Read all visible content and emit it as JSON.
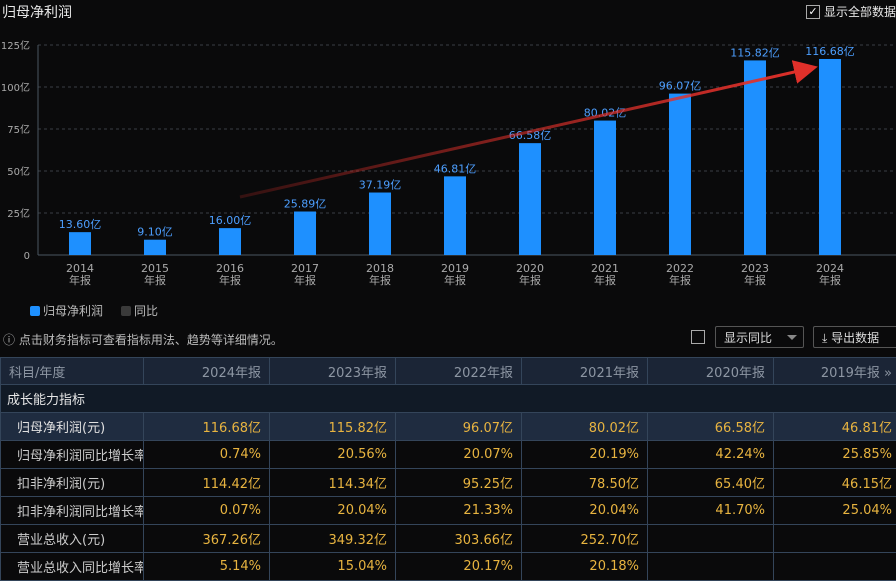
{
  "header": {
    "title": "归母净利润",
    "show_all_label": "显示全部数据",
    "show_all_checked": true
  },
  "chart_data": {
    "type": "bar",
    "categories": [
      "2014\n年报",
      "2015\n年报",
      "2016\n年报",
      "2017\n年报",
      "2018\n年报",
      "2019\n年报",
      "2020\n年报",
      "2021\n年报",
      "2022\n年报",
      "2023\n年报",
      "2024\n年报"
    ],
    "years": [
      "2014",
      "2015",
      "2016",
      "2017",
      "2018",
      "2019",
      "2020",
      "2021",
      "2022",
      "2023",
      "2024"
    ],
    "period_label": "年报",
    "series": [
      {
        "name": "归母净利润",
        "values": [
          13.6,
          9.1,
          16.0,
          25.89,
          37.19,
          46.81,
          66.58,
          80.02,
          96.07,
          115.82,
          116.68
        ],
        "color": "#1e90ff"
      }
    ],
    "data_labels": [
      "13.60亿",
      "9.10亿",
      "16.00亿",
      "25.89亿",
      "37.19亿",
      "46.81亿",
      "66.58亿",
      "80.02亿",
      "96.07亿",
      "115.82亿",
      "116.68亿"
    ],
    "y_ticks": [
      "0",
      "25亿",
      "50亿",
      "75亿",
      "100亿",
      "125亿"
    ],
    "ylim": [
      0,
      125
    ],
    "grid": true,
    "annotation": {
      "type": "trend-arrow",
      "color": "#e0302a",
      "from_year": "2016",
      "to_year": "2024"
    },
    "legend": [
      {
        "label": "归母净利润",
        "color": "#1e90ff"
      },
      {
        "label": "同比",
        "color": "#3a3a3a"
      }
    ],
    "legend_position": "bottom-left"
  },
  "toolbar": {
    "tip": "点击财务指标可查看指标用法、趋势等详细情况。",
    "yoy_select": "显示同比",
    "export": "导出数据"
  },
  "table": {
    "headers": [
      "科目/年度",
      "2024年报",
      "2023年报",
      "2022年报",
      "2021年报",
      "2020年报",
      "2019年报 »"
    ],
    "section": "成长能力指标",
    "rows": [
      [
        "归母净利润(元)",
        "116.68亿",
        "115.82亿",
        "96.07亿",
        "80.02亿",
        "66.58亿",
        "46.81亿"
      ],
      [
        "归母净利润同比增长率",
        "0.74%",
        "20.56%",
        "20.07%",
        "20.19%",
        "42.24%",
        "25.85%"
      ],
      [
        "扣非净利润(元)",
        "114.42亿",
        "114.34亿",
        "95.25亿",
        "78.50亿",
        "65.40亿",
        "46.15亿"
      ],
      [
        "扣非净利润同比增长率",
        "0.07%",
        "20.04%",
        "21.33%",
        "20.04%",
        "41.70%",
        "25.04%"
      ],
      [
        "营业总收入(元)",
        "367.26亿",
        "349.32亿",
        "303.66亿",
        "252.70亿",
        "",
        ""
      ],
      [
        "营业总收入同比增长率",
        "5.14%",
        "15.04%",
        "20.17%",
        "20.18%",
        "",
        ""
      ]
    ]
  }
}
